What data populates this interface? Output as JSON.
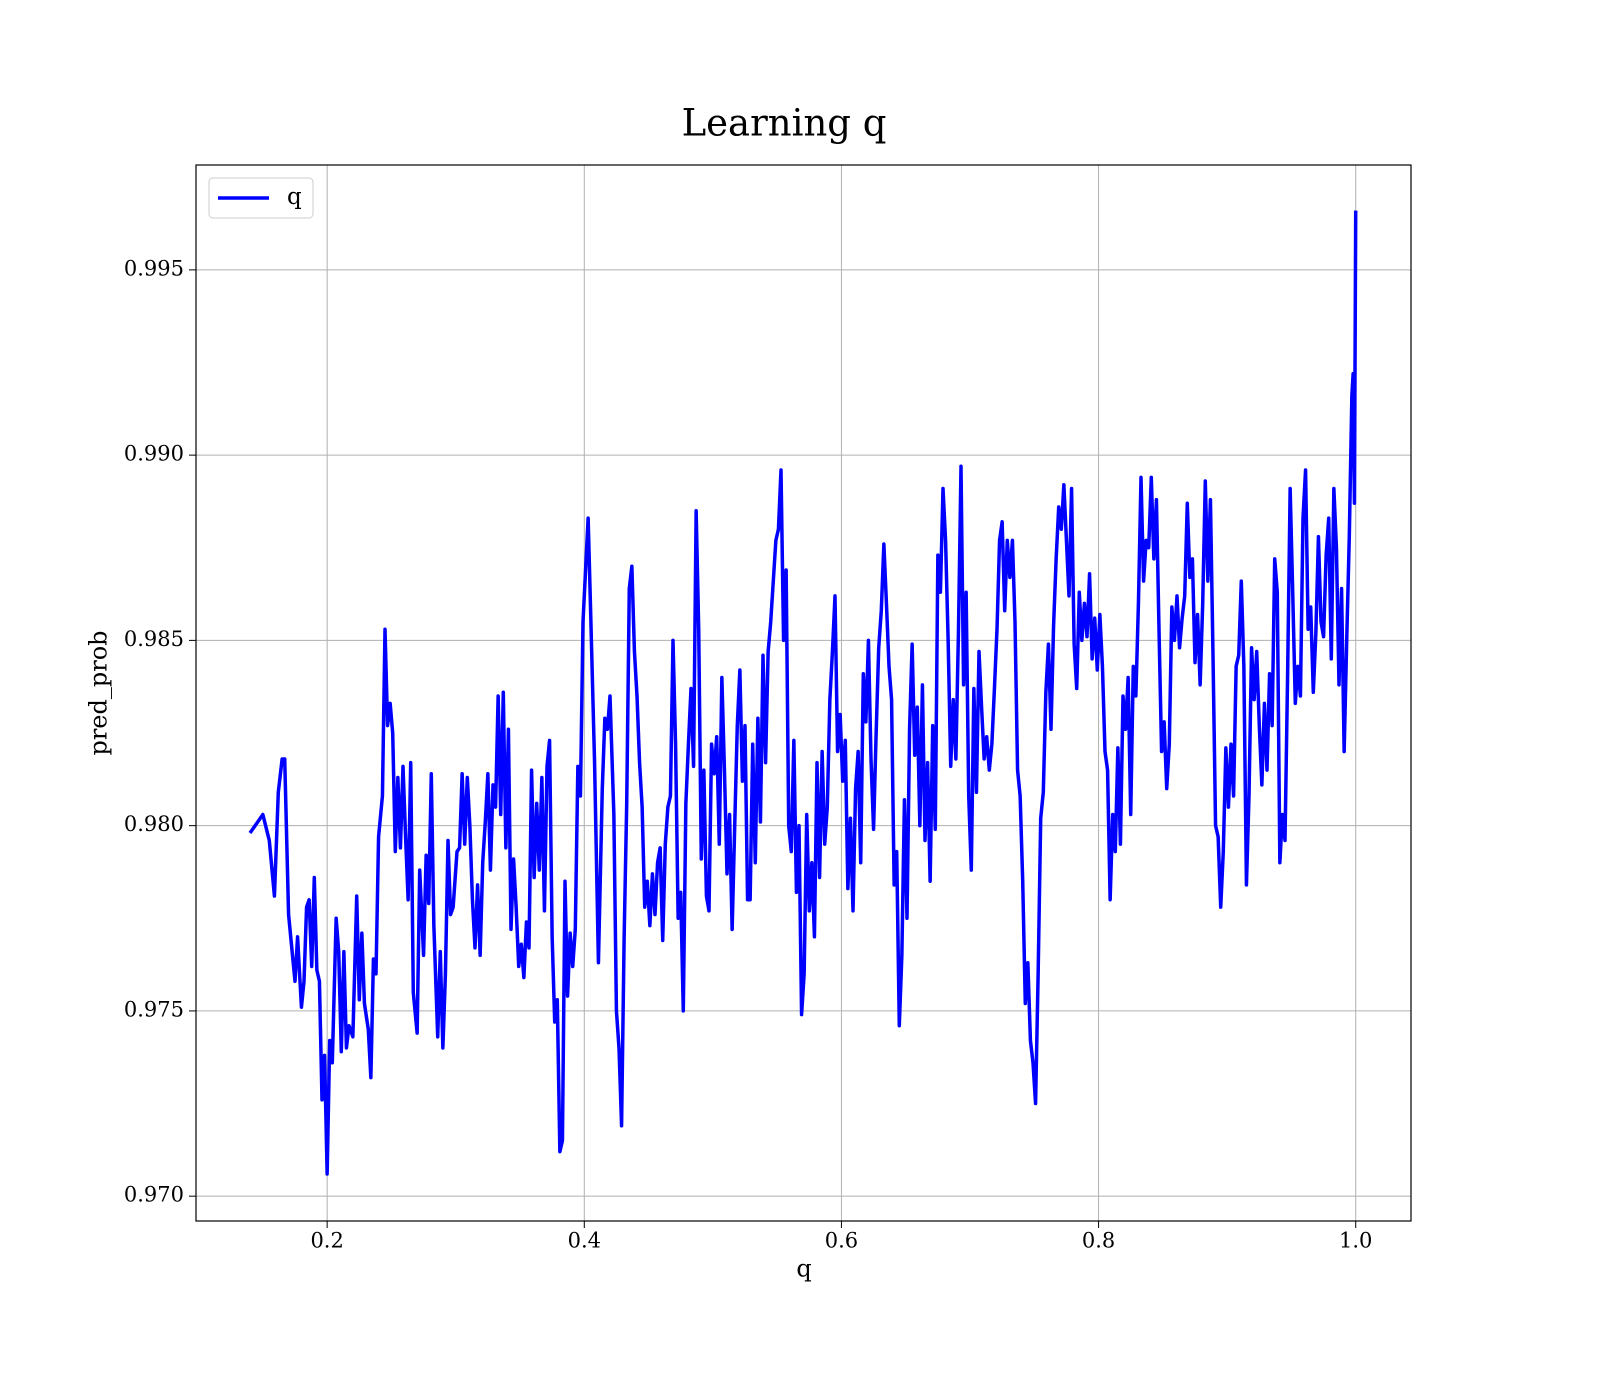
{
  "chart_data": {
    "type": "line",
    "title": "Learning q",
    "xlabel": "q",
    "ylabel": "pred_prob",
    "xlim": [
      0.098,
      1.043
    ],
    "ylim": [
      0.96933,
      0.99783
    ],
    "xticks": [
      0.2,
      0.4,
      0.6,
      0.8,
      {
        "value": 1,
        "label": "1.0"
      }
    ],
    "yticks": [
      {
        "value": 0.97,
        "label": "0.970"
      },
      0.975,
      {
        "value": 0.98,
        "label": "0.980"
      },
      0.985,
      {
        "value": 0.99,
        "label": "0.990"
      },
      0.995
    ],
    "grid": true,
    "legend": "upper left",
    "x": [
      0.14,
      0.15,
      0.155,
      0.159,
      0.162,
      0.165,
      0.167,
      0.17,
      0.175,
      0.177,
      0.18,
      0.182,
      0.184,
      0.186,
      0.188,
      0.19,
      0.192,
      0.194,
      0.196,
      0.198,
      0.2,
      0.202,
      0.204,
      0.207,
      0.209,
      0.211,
      0.213,
      0.215,
      0.217,
      0.22,
      0.223,
      0.225,
      0.227,
      0.229,
      0.232,
      0.234,
      0.236,
      0.238,
      0.24,
      0.243,
      0.245,
      0.247,
      0.249,
      0.251,
      0.253,
      0.255,
      0.257,
      0.259,
      0.261,
      0.263,
      0.265,
      0.267,
      0.27,
      0.272,
      0.275,
      0.277,
      0.279,
      0.281,
      0.283,
      0.286,
      0.288,
      0.29,
      0.292,
      0.294,
      0.296,
      0.298,
      0.301,
      0.303,
      0.305,
      0.307,
      0.309,
      0.311,
      0.313,
      0.315,
      0.317,
      0.319,
      0.321,
      0.323,
      0.325,
      0.327,
      0.329,
      0.331,
      0.333,
      0.335,
      0.337,
      0.339,
      0.341,
      0.343,
      0.345,
      0.347,
      0.349,
      0.351,
      0.353,
      0.355,
      0.357,
      0.359,
      0.361,
      0.363,
      0.365,
      0.367,
      0.369,
      0.371,
      0.373,
      0.375,
      0.377,
      0.379,
      0.381,
      0.383,
      0.385,
      0.387,
      0.389,
      0.391,
      0.393,
      0.395,
      0.397,
      0.399,
      0.401,
      0.403,
      0.405,
      0.408,
      0.411,
      0.414,
      0.416,
      0.418,
      0.42,
      0.423,
      0.425,
      0.427,
      0.429,
      0.431,
      0.433,
      0.435,
      0.437,
      0.439,
      0.441,
      0.443,
      0.445,
      0.447,
      0.449,
      0.451,
      0.453,
      0.455,
      0.457,
      0.459,
      0.461,
      0.463,
      0.465,
      0.467,
      0.469,
      0.471,
      0.473,
      0.475,
      0.477,
      0.479,
      0.481,
      0.483,
      0.485,
      0.487,
      0.489,
      0.491,
      0.493,
      0.495,
      0.497,
      0.499,
      0.501,
      0.503,
      0.505,
      0.507,
      0.509,
      0.511,
      0.513,
      0.515,
      0.517,
      0.519,
      0.521,
      0.523,
      0.525,
      0.527,
      0.529,
      0.531,
      0.533,
      0.535,
      0.537,
      0.539,
      0.541,
      0.543,
      0.545,
      0.547,
      0.549,
      0.551,
      0.553,
      0.555,
      0.557,
      0.559,
      0.561,
      0.563,
      0.565,
      0.567,
      0.569,
      0.571,
      0.573,
      0.575,
      0.577,
      0.579,
      0.581,
      0.583,
      0.585,
      0.587,
      0.589,
      0.591,
      0.593,
      0.595,
      0.597,
      0.599,
      0.601,
      0.603,
      0.605,
      0.607,
      0.609,
      0.611,
      0.613,
      0.615,
      0.617,
      0.619,
      0.621,
      0.623,
      0.625,
      0.627,
      0.629,
      0.631,
      0.633,
      0.635,
      0.637,
      0.639,
      0.641,
      0.643,
      0.645,
      0.647,
      0.649,
      0.651,
      0.653,
      0.655,
      0.657,
      0.659,
      0.661,
      0.663,
      0.665,
      0.667,
      0.669,
      0.671,
      0.673,
      0.675,
      0.677,
      0.679,
      0.681,
      0.683,
      0.685,
      0.687,
      0.689,
      0.691,
      0.693,
      0.695,
      0.697,
      0.699,
      0.701,
      0.703,
      0.705,
      0.707,
      0.709,
      0.711,
      0.713,
      0.715,
      0.717,
      0.719,
      0.721,
      0.723,
      0.725,
      0.727,
      0.729,
      0.731,
      0.733,
      0.735,
      0.737,
      0.739,
      0.741,
      0.743,
      0.745,
      0.747,
      0.749,
      0.751,
      0.753,
      0.755,
      0.757,
      0.759,
      0.761,
      0.763,
      0.765,
      0.767,
      0.769,
      0.771,
      0.773,
      0.775,
      0.777,
      0.779,
      0.781,
      0.783,
      0.785,
      0.787,
      0.789,
      0.791,
      0.793,
      0.795,
      0.797,
      0.799,
      0.801,
      0.803,
      0.805,
      0.807,
      0.809,
      0.811,
      0.813,
      0.815,
      0.817,
      0.819,
      0.821,
      0.823,
      0.825,
      0.827,
      0.829,
      0.831,
      0.833,
      0.835,
      0.837,
      0.839,
      0.841,
      0.843,
      0.845,
      0.847,
      0.849,
      0.851,
      0.853,
      0.855,
      0.857,
      0.859,
      0.861,
      0.863,
      0.865,
      0.867,
      0.869,
      0.871,
      0.873,
      0.875,
      0.877,
      0.879,
      0.881,
      0.883,
      0.885,
      0.887,
      0.889,
      0.891,
      0.893,
      0.895,
      0.897,
      0.899,
      0.901,
      0.903,
      0.905,
      0.907,
      0.909,
      0.911,
      0.913,
      0.915,
      0.917,
      0.919,
      0.921,
      0.923,
      0.925,
      0.927,
      0.929,
      0.931,
      0.933,
      0.935,
      0.937,
      0.939,
      0.941,
      0.943,
      0.945,
      0.947,
      0.949,
      0.951,
      0.953,
      0.955,
      0.957,
      0.959,
      0.961,
      0.963,
      0.965,
      0.967,
      0.969,
      0.971,
      0.973,
      0.975,
      0.977,
      0.979,
      0.981,
      0.983,
      0.985,
      0.987,
      0.989,
      0.991,
      0.993,
      0.995,
      0.997,
      0.998,
      0.999,
      1.0
    ],
    "series": [
      {
        "name": "q",
        "color": "#0000ff",
        "values": [
          0.9798,
          0.9803,
          0.9796,
          0.9781,
          0.9809,
          0.9818,
          0.9818,
          0.9776,
          0.9758,
          0.977,
          0.9751,
          0.9758,
          0.9778,
          0.978,
          0.9762,
          0.9786,
          0.9761,
          0.9758,
          0.9726,
          0.9738,
          0.9706,
          0.9742,
          0.9736,
          0.9775,
          0.9766,
          0.9739,
          0.9766,
          0.974,
          0.9746,
          0.9743,
          0.9781,
          0.9753,
          0.9771,
          0.9752,
          0.9745,
          0.9732,
          0.9764,
          0.976,
          0.9797,
          0.9808,
          0.9853,
          0.9827,
          0.9833,
          0.9825,
          0.9793,
          0.9813,
          0.9794,
          0.9816,
          0.9797,
          0.978,
          0.9817,
          0.9755,
          0.9744,
          0.9788,
          0.9765,
          0.9792,
          0.9779,
          0.9814,
          0.9773,
          0.9743,
          0.9766,
          0.974,
          0.976,
          0.9796,
          0.9776,
          0.9778,
          0.9793,
          0.9794,
          0.9814,
          0.9795,
          0.9813,
          0.98,
          0.978,
          0.9767,
          0.9784,
          0.9765,
          0.979,
          0.9801,
          0.9814,
          0.9788,
          0.9811,
          0.9805,
          0.9835,
          0.9803,
          0.9836,
          0.9794,
          0.9826,
          0.9772,
          0.9791,
          0.9778,
          0.9762,
          0.9768,
          0.9759,
          0.9774,
          0.9767,
          0.9815,
          0.9786,
          0.9806,
          0.9788,
          0.9813,
          0.9777,
          0.9816,
          0.9823,
          0.977,
          0.9747,
          0.9753,
          0.9712,
          0.9715,
          0.9785,
          0.9754,
          0.9771,
          0.9762,
          0.9772,
          0.9816,
          0.9808,
          0.9855,
          0.9869,
          0.9883,
          0.9857,
          0.9817,
          0.9763,
          0.981,
          0.9829,
          0.9826,
          0.9835,
          0.9803,
          0.975,
          0.974,
          0.9719,
          0.977,
          0.9806,
          0.9864,
          0.987,
          0.9847,
          0.9835,
          0.9817,
          0.9805,
          0.9778,
          0.9785,
          0.9773,
          0.9787,
          0.9776,
          0.979,
          0.9794,
          0.9769,
          0.9795,
          0.9805,
          0.9808,
          0.985,
          0.9822,
          0.9775,
          0.9782,
          0.975,
          0.9806,
          0.9822,
          0.9837,
          0.9816,
          0.9885,
          0.9853,
          0.9791,
          0.9815,
          0.9781,
          0.9777,
          0.9822,
          0.9814,
          0.9824,
          0.9795,
          0.984,
          0.9815,
          0.9787,
          0.9803,
          0.9772,
          0.98,
          0.9827,
          0.9842,
          0.9812,
          0.9827,
          0.978,
          0.978,
          0.9822,
          0.979,
          0.9829,
          0.9801,
          0.9846,
          0.9817,
          0.9847,
          0.9855,
          0.9866,
          0.9877,
          0.988,
          0.9896,
          0.985,
          0.9869,
          0.98,
          0.9793,
          0.9823,
          0.9782,
          0.98,
          0.9749,
          0.976,
          0.9803,
          0.9777,
          0.979,
          0.977,
          0.9817,
          0.9786,
          0.982,
          0.9795,
          0.9805,
          0.9834,
          0.9847,
          0.9862,
          0.982,
          0.983,
          0.9812,
          0.9823,
          0.9783,
          0.9802,
          0.9777,
          0.981,
          0.982,
          0.979,
          0.9841,
          0.9828,
          0.985,
          0.9818,
          0.9799,
          0.9825,
          0.9848,
          0.9858,
          0.9876,
          0.986,
          0.9843,
          0.9834,
          0.9784,
          0.9793,
          0.9746,
          0.9765,
          0.9807,
          0.9775,
          0.9826,
          0.9849,
          0.9819,
          0.9832,
          0.98,
          0.9838,
          0.9796,
          0.9817,
          0.9785,
          0.9827,
          0.9799,
          0.9873,
          0.9863,
          0.9891,
          0.9877,
          0.985,
          0.9816,
          0.9834,
          0.9818,
          0.9852,
          0.9897,
          0.9838,
          0.9863,
          0.9808,
          0.9788,
          0.9837,
          0.9809,
          0.9847,
          0.9832,
          0.9818,
          0.9824,
          0.9815,
          0.9822,
          0.9837,
          0.9853,
          0.9877,
          0.9882,
          0.9858,
          0.9877,
          0.9867,
          0.9877,
          0.9855,
          0.9815,
          0.9808,
          0.9785,
          0.9752,
          0.9763,
          0.9742,
          0.9736,
          0.9725,
          0.976,
          0.9802,
          0.9809,
          0.9836,
          0.9849,
          0.9826,
          0.9854,
          0.9872,
          0.9886,
          0.988,
          0.9892,
          0.9877,
          0.9862,
          0.9891,
          0.9849,
          0.9837,
          0.9863,
          0.985,
          0.986,
          0.9851,
          0.9868,
          0.9845,
          0.9856,
          0.9842,
          0.9857,
          0.9843,
          0.982,
          0.9815,
          0.978,
          0.9803,
          0.9793,
          0.9821,
          0.9795,
          0.9835,
          0.9826,
          0.984,
          0.9803,
          0.9843,
          0.9835,
          0.986,
          0.9894,
          0.9866,
          0.9877,
          0.9875,
          0.9894,
          0.9872,
          0.9888,
          0.9853,
          0.982,
          0.9828,
          0.981,
          0.9822,
          0.9859,
          0.985,
          0.9862,
          0.9848,
          0.9856,
          0.9862,
          0.9887,
          0.9867,
          0.9872,
          0.9844,
          0.9857,
          0.9838,
          0.986,
          0.9893,
          0.9866,
          0.9888,
          0.9846,
          0.98,
          0.9797,
          0.9778,
          0.9793,
          0.9821,
          0.9805,
          0.9822,
          0.9808,
          0.9843,
          0.9846,
          0.9866,
          0.9843,
          0.9784,
          0.9808,
          0.9848,
          0.9834,
          0.9847,
          0.9827,
          0.9811,
          0.9833,
          0.9815,
          0.9841,
          0.9827,
          0.9872,
          0.9863,
          0.979,
          0.9803,
          0.9796,
          0.984,
          0.9891,
          0.9863,
          0.9833,
          0.9843,
          0.9835,
          0.9883,
          0.9896,
          0.9853,
          0.9859,
          0.9836,
          0.9852,
          0.9878,
          0.9855,
          0.9851,
          0.9873,
          0.9883,
          0.9845,
          0.9891,
          0.9875,
          0.9838,
          0.9864,
          0.982,
          0.985,
          0.9878,
          0.9916,
          0.9922,
          0.9887,
          0.9966
        ]
      }
    ]
  }
}
